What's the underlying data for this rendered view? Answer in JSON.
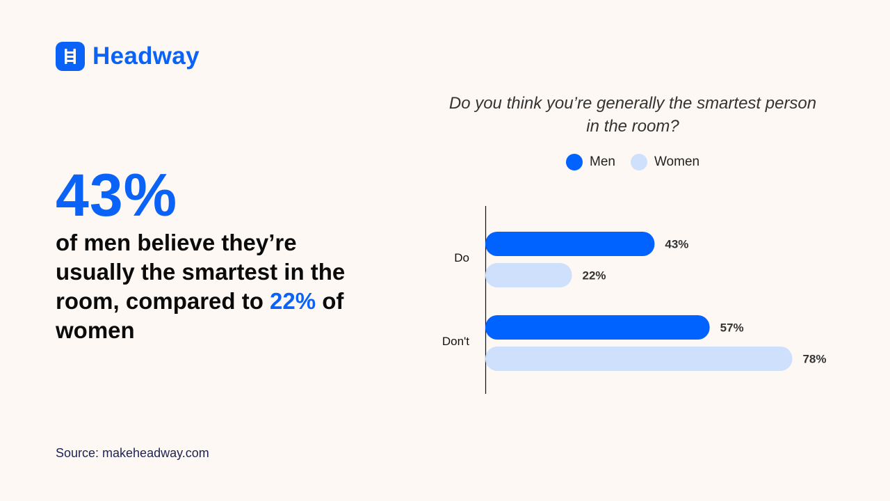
{
  "brand": {
    "name": "Headway",
    "logo_icon": "ladder-icon",
    "color": "#0a62f6"
  },
  "headline": {
    "stat": "43%",
    "text_before": "of men believe they’re usually the smartest in the room, compared to ",
    "highlight": "22%",
    "text_after": " of women"
  },
  "source": "Source: makeheadway.com",
  "chart_data": {
    "type": "bar",
    "orientation": "horizontal",
    "title": "Do you think you’re generally the smartest person in the room?",
    "categories": [
      "Do",
      "Don't"
    ],
    "series": [
      {
        "name": "Men",
        "values": [
          43,
          57
        ],
        "color": "#0062ff"
      },
      {
        "name": "Women",
        "values": [
          22,
          78
        ],
        "color": "#cfe0fd"
      }
    ],
    "data_labels": [
      [
        "43%",
        "57%"
      ],
      [
        "22%",
        "78%"
      ]
    ],
    "xlim": [
      0,
      78
    ],
    "grid": false,
    "legend_position": "top"
  }
}
